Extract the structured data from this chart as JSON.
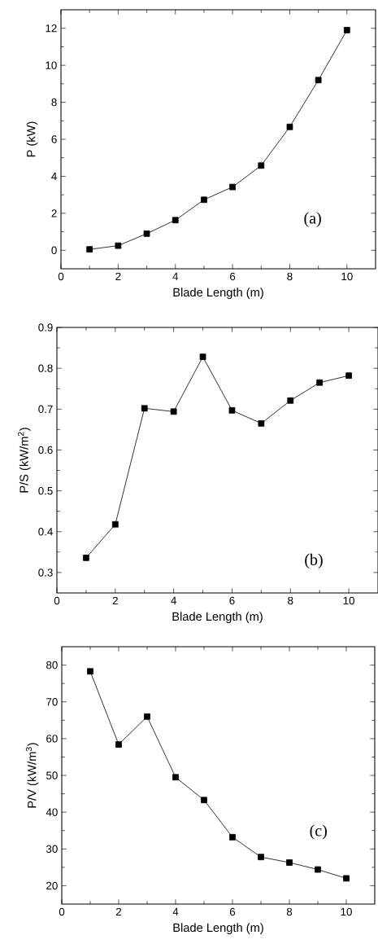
{
  "chart_data": [
    {
      "type": "line",
      "xlabel": "Blade Length (m)",
      "ylabel": "P (kW)",
      "annotations": [
        "(a)"
      ],
      "color": "#000000",
      "marker": "square",
      "line_style": "solid",
      "x": [
        1,
        2,
        3,
        4,
        5,
        6,
        7,
        8,
        9,
        10
      ],
      "values": [
        0.05,
        0.25,
        0.9,
        1.63,
        2.73,
        3.42,
        4.58,
        6.67,
        9.2,
        11.9
      ],
      "xlim": [
        0,
        11
      ],
      "ylim": [
        -1,
        13
      ],
      "xticks": [
        0,
        2,
        4,
        6,
        8,
        10
      ],
      "yticks": [
        0,
        2,
        4,
        6,
        8,
        10,
        12
      ]
    },
    {
      "type": "line",
      "xlabel": "Blade Length (m)",
      "ylabel": "P/S (kW/m$^{2}$)",
      "annotations": [
        "(b)"
      ],
      "color": "#000000",
      "marker": "square",
      "line_style": "solid",
      "x": [
        1,
        2,
        3,
        4,
        5,
        6,
        7,
        8,
        9,
        10
      ],
      "values": [
        0.336,
        0.418,
        0.702,
        0.694,
        0.828,
        0.697,
        0.665,
        0.721,
        0.765,
        0.782
      ],
      "xlim": [
        0,
        11
      ],
      "ylim": [
        0.25,
        0.9
      ],
      "xticks": [
        0,
        2,
        4,
        6,
        8,
        10
      ],
      "yticks": [
        0.3,
        0.4,
        0.5,
        0.6,
        0.7,
        0.8,
        0.9
      ]
    },
    {
      "type": "line",
      "xlabel": "Blade Length (m)",
      "ylabel": "P/V (kW/m$^{3}$)",
      "annotations": [
        "(c)"
      ],
      "color": "#000000",
      "marker": "square",
      "line_style": "solid",
      "x": [
        1,
        2,
        3,
        4,
        5,
        6,
        7,
        8,
        9,
        10
      ],
      "values": [
        78.3,
        58.4,
        66.0,
        49.5,
        43.3,
        33.2,
        27.8,
        26.3,
        24.4,
        22.0
      ],
      "xlim": [
        0,
        11
      ],
      "ylim": [
        15,
        85
      ],
      "xticks": [
        0,
        2,
        4,
        6,
        8,
        10
      ],
      "yticks": [
        20,
        30,
        40,
        50,
        60,
        70,
        80
      ]
    }
  ]
}
